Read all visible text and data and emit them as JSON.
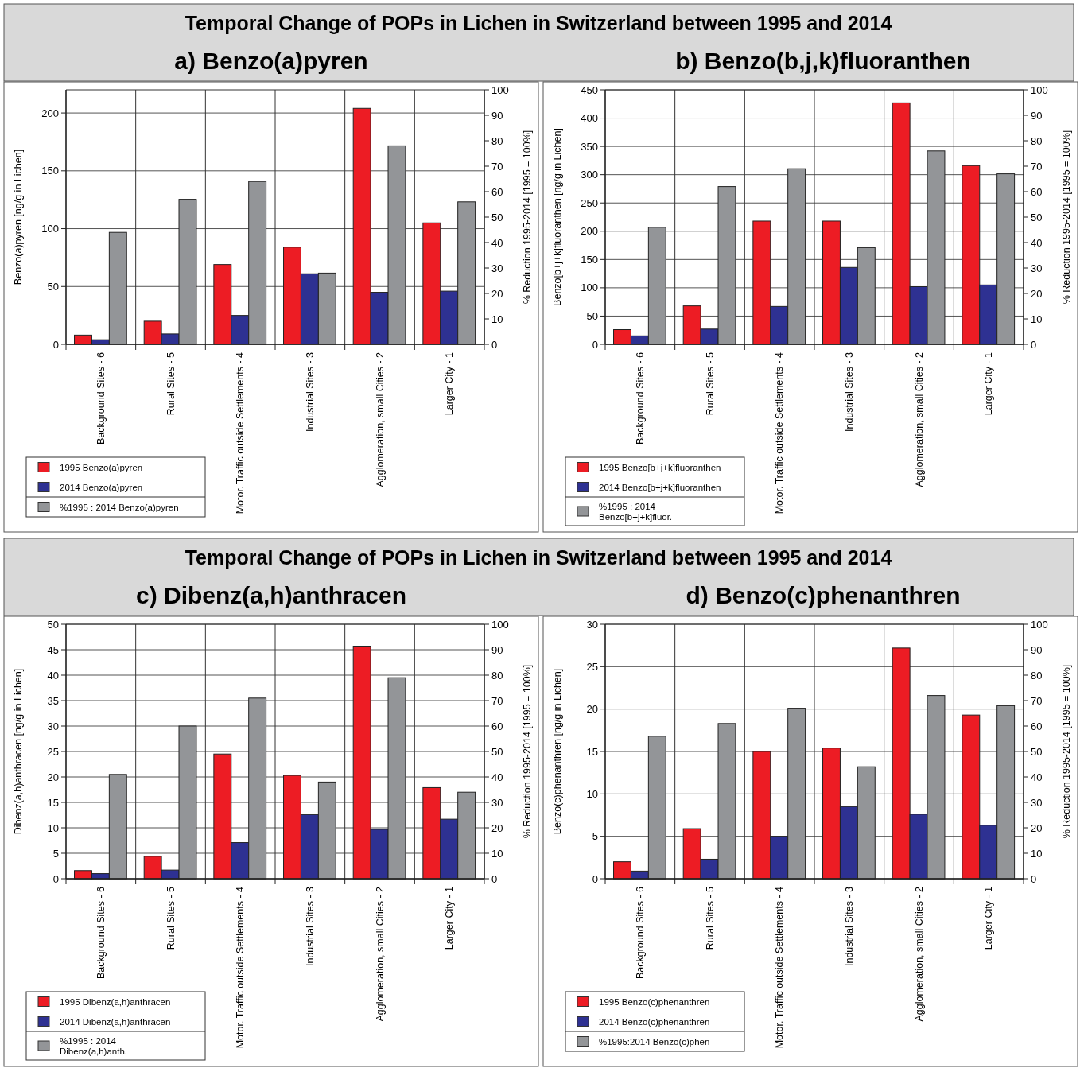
{
  "chart_data": [
    {
      "type": "bar",
      "title": "a)  Benzo(a)pyren",
      "annotations": [
        "Temporal Change of POPs in Lichen in Switzerland between 1995 and 2014"
      ],
      "ylabel": "Benzo(a)pyren [ng/g in Lichen]",
      "y2label": "% Reduction 1995-2014  [1995 = 100%]",
      "categories": [
        "Background Sites - 6",
        "Rural Sites  - 5",
        "Motor. Traffic outside Settlements - 4",
        "Industrial Sites - 3",
        "Agglomeration, small Cities - 2",
        "Larger City - 1"
      ],
      "series": [
        {
          "name": "1995 Benzo(a)pyren",
          "color": "#ed1c24",
          "values": [
            8,
            20,
            69,
            84,
            204,
            105
          ]
        },
        {
          "name": "2014 Benzo(a)pyren",
          "color": "#2e3192",
          "values": [
            4,
            9,
            25,
            61,
            45,
            46
          ]
        },
        {
          "name": "%1995 : 2014 Benzo(a)pyren",
          "color": "#939598",
          "axis": "y2",
          "values": [
            44,
            57,
            64,
            28,
            78,
            56
          ]
        }
      ],
      "ylim": [
        0,
        220
      ],
      "yticks": [
        0,
        50,
        100,
        150,
        200
      ],
      "y2lim": [
        0,
        100
      ],
      "y2ticks": [
        0,
        10,
        20,
        30,
        40,
        50,
        60,
        70,
        80,
        90,
        100
      ],
      "grid": true,
      "legend": "bottom left"
    },
    {
      "type": "bar",
      "title": "b)  Benzo(b,j,k)fluoranthen",
      "ylabel": "Benzo[b+j+k]fluoranthen [ng/g in Lichen]",
      "y2label": "% Reduction 1995-2014  [1995 = 100%]",
      "categories": [
        "Background Sites - 6",
        "Rural Sites  - 5",
        "Motor. Traffic outside Settlements - 4",
        "Industrial Sites - 3",
        "Agglomeration, small Cities - 2",
        "Larger City - 1"
      ],
      "series": [
        {
          "name": "1995 Benzo[b+j+k]fluoranthen",
          "color": "#ed1c24",
          "values": [
            26,
            68,
            218,
            218,
            427,
            316
          ]
        },
        {
          "name": "2014 Benzo[b+j+k]fluoranthen",
          "color": "#2e3192",
          "values": [
            15,
            27,
            67,
            136,
            102,
            105
          ]
        },
        {
          "name": "%1995 : 2014 Benzo[b+j+k]fluor.",
          "color": "#939598",
          "axis": "y2",
          "values": [
            46,
            62,
            69,
            38,
            76,
            67
          ]
        }
      ],
      "ylim": [
        0,
        450
      ],
      "yticks": [
        0,
        50,
        100,
        150,
        200,
        250,
        300,
        350,
        400,
        450
      ],
      "y2lim": [
        0,
        100
      ],
      "y2ticks": [
        0,
        10,
        20,
        30,
        40,
        50,
        60,
        70,
        80,
        90,
        100
      ],
      "grid": true,
      "legend": "bottom left"
    },
    {
      "type": "bar",
      "title": "c)  Dibenz(a,h)anthracen",
      "annotations": [
        "Temporal Change of POPs in Lichen in Switzerland between 1995 and 2014"
      ],
      "ylabel": "Dibenz(a,h)anthracen [ng/g in Lichen]",
      "y2label": "% Reduction 1995-2014  [1995 = 100%]",
      "categories": [
        "Background Sites - 6",
        "Rural Sites  - 5",
        "Motor. Traffic outside Settlements - 4",
        "Industrial Sites - 3",
        "Agglomeration, small Cities - 2",
        "Larger City - 1"
      ],
      "series": [
        {
          "name": "1995 Dibenz(a,h)anthracen",
          "color": "#ed1c24",
          "values": [
            1.6,
            4.4,
            24.5,
            20.3,
            45.7,
            17.9
          ]
        },
        {
          "name": "2014 Dibenz(a,h)anthracen",
          "color": "#2e3192",
          "values": [
            1.0,
            1.7,
            7.1,
            12.6,
            9.7,
            11.7
          ]
        },
        {
          "name": "%1995 : 2014 Dibenz(a,h)anth.",
          "color": "#939598",
          "axis": "y2",
          "values": [
            41,
            60,
            71,
            38,
            79,
            34
          ]
        }
      ],
      "ylim": [
        0,
        50
      ],
      "yticks": [
        0,
        5,
        10,
        15,
        20,
        25,
        30,
        35,
        40,
        45,
        50
      ],
      "y2lim": [
        0,
        100
      ],
      "y2ticks": [
        0,
        10,
        20,
        30,
        40,
        50,
        60,
        70,
        80,
        90,
        100
      ],
      "grid": true,
      "legend": "bottom left"
    },
    {
      "type": "bar",
      "title": "d)  Benzo(c)phenanthren",
      "ylabel": "Benzo(c)phenanthren [ng/g in Lichen]",
      "y2label": "% Reduction 1995-2014  [1995 = 100%]",
      "categories": [
        "Background Sites - 6",
        "Rural Sites  - 5",
        "Motor. Traffic outside Settlements - 4",
        "Industrial Sites - 3",
        "Agglomeration, small Cities - 2",
        "Larger City - 1"
      ],
      "series": [
        {
          "name": "1995 Benzo(c)phenanthren",
          "color": "#ed1c24",
          "values": [
            2.0,
            5.9,
            15.0,
            15.4,
            27.2,
            19.3
          ]
        },
        {
          "name": "2014 Benzo(c)phenanthren",
          "color": "#2e3192",
          "values": [
            0.9,
            2.3,
            5.0,
            8.5,
            7.6,
            6.3
          ]
        },
        {
          "name": "%1995:2014 Benzo(c)phen",
          "color": "#939598",
          "axis": "y2",
          "values": [
            56,
            61,
            67,
            44,
            72,
            68
          ]
        }
      ],
      "ylim": [
        0,
        30
      ],
      "yticks": [
        0,
        5,
        10,
        15,
        20,
        25,
        30
      ],
      "y2lim": [
        0,
        100
      ],
      "y2ticks": [
        0,
        10,
        20,
        30,
        40,
        50,
        60,
        70,
        80,
        90,
        100
      ],
      "grid": true,
      "legend": "bottom left"
    }
  ]
}
